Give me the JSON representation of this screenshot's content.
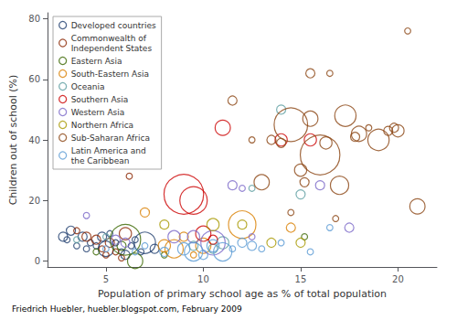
{
  "chart_data": {
    "type": "scatter",
    "xlabel": "Population of primary school age as % of total population",
    "ylabel": "Children out of school (%)",
    "footnote": "Friedrich Huebler, huebler.blogspot.com, February 2009",
    "xlim": [
      2,
      22
    ],
    "ylim": [
      -2,
      82
    ],
    "xticks": [
      5,
      10,
      15,
      20
    ],
    "yticks": [
      0,
      20,
      40,
      60,
      80
    ],
    "grid": false,
    "legend": "upper left",
    "marker": "open_circle",
    "series": [
      {
        "name": "Developed countries",
        "color": "#1f3d6e",
        "x": [
          2.8,
          3.0,
          3.2,
          3.5,
          3.8,
          4.0,
          4.2,
          4.5,
          4.8,
          5.0,
          5.2,
          5.5,
          5.8,
          6.0,
          6.3,
          6.5,
          6.8,
          7.0,
          7.5
        ],
        "values": [
          8,
          7,
          10,
          5,
          8,
          4,
          6,
          5,
          8,
          4,
          9,
          6,
          3,
          2,
          5,
          7,
          3,
          6,
          4
        ],
        "sizes": [
          3,
          2,
          3,
          2,
          3,
          2,
          2,
          2,
          3,
          5,
          2,
          2,
          2,
          3,
          2,
          2,
          2,
          7,
          3
        ]
      },
      {
        "name": "Commonwealth of\nIndependent States",
        "color": "#8b2500",
        "x": [
          3.5,
          4.0,
          4.5,
          4.8,
          5.0,
          5.2,
          5.5,
          5.8,
          6.0,
          6.2
        ],
        "values": [
          10,
          8,
          7,
          4,
          2,
          6,
          3,
          1,
          9,
          28
        ],
        "sizes": [
          2,
          3,
          3,
          2,
          2,
          3,
          2,
          2,
          4,
          2
        ]
      },
      {
        "name": "Eastern Asia",
        "color": "#3a6600",
        "x": [
          4.5,
          5.8,
          6.0,
          6.5,
          8.0,
          15.2
        ],
        "values": [
          3,
          5,
          7,
          0,
          2,
          8
        ],
        "sizes": [
          2,
          3,
          10,
          5,
          2,
          2
        ]
      },
      {
        "name": "South-Eastern Asia",
        "color": "#d97f00",
        "x": [
          7.0,
          8.0,
          8.5,
          9.0,
          9.5,
          10.0,
          12.0,
          14.5
        ],
        "values": [
          16,
          5,
          4,
          8,
          2,
          5,
          12,
          11
        ],
        "sizes": [
          3,
          4,
          6,
          3,
          2,
          5,
          9,
          3
        ]
      },
      {
        "name": "Oceania",
        "color": "#5c9da0",
        "x": [
          3.5,
          5.0,
          9.5,
          10.5,
          11.0,
          12.5,
          14.0,
          15.0
        ],
        "values": [
          7,
          8,
          5,
          4,
          6,
          24,
          50,
          22
        ],
        "sizes": [
          2,
          2,
          3,
          3,
          4,
          2,
          3,
          3
        ]
      },
      {
        "name": "Southern Asia",
        "color": "#cc0000",
        "x": [
          9.0,
          9.5,
          10.0,
          10.5,
          11.0,
          14.0,
          15.5
        ],
        "values": [
          22,
          20,
          9,
          7,
          44,
          40,
          40
        ],
        "sizes": [
          13,
          9,
          5,
          3,
          5,
          4,
          4
        ]
      },
      {
        "name": "Western Asia",
        "color": "#7b68c8",
        "x": [
          4.0,
          5.5,
          6.0,
          8.5,
          9.5,
          10.5,
          11.5,
          12.0,
          12.5,
          16.0,
          17.5
        ],
        "values": [
          15,
          7,
          6,
          8,
          8,
          6,
          25,
          24,
          8,
          25,
          11
        ],
        "sizes": [
          2,
          3,
          3,
          4,
          4,
          8,
          3,
          2,
          2,
          3,
          3
        ]
      },
      {
        "name": "Northern Africa",
        "color": "#a89800",
        "x": [
          8.0,
          10.5,
          12.0,
          13.5,
          15.0
        ],
        "values": [
          12,
          12,
          12,
          6,
          6
        ],
        "sizes": [
          3,
          4,
          3,
          3,
          3
        ]
      },
      {
        "name": "Sub-Saharan Africa",
        "color": "#8b4513",
        "x": [
          11.5,
          12.5,
          13.0,
          13.5,
          14.0,
          14.5,
          14.5,
          15.0,
          15.2,
          15.5,
          15.5,
          16.0,
          16.3,
          16.5,
          16.8,
          17.0,
          17.3,
          17.8,
          18.0,
          18.5,
          19.0,
          19.5,
          19.8,
          20.0,
          20.5,
          21.0
        ],
        "values": [
          53,
          40,
          26,
          40,
          39,
          45,
          16,
          30,
          26,
          62,
          47,
          35,
          39,
          62,
          14,
          25,
          48,
          41,
          42,
          44,
          40,
          43,
          44,
          43,
          76,
          18
        ],
        "sizes": [
          3,
          2,
          5,
          3,
          3,
          11,
          2,
          4,
          3,
          3,
          5,
          13,
          4,
          2,
          2,
          6,
          7,
          3,
          5,
          2,
          7,
          3,
          3,
          4,
          2,
          5
        ]
      },
      {
        "name": "Latin America and\nthe Caribbean",
        "color": "#5b9bd5",
        "x": [
          5.0,
          6.5,
          7.0,
          8.0,
          9.0,
          9.5,
          10.0,
          10.5,
          11.0,
          11.5,
          12.0,
          12.5,
          13.0,
          14.0,
          15.5,
          16.5
        ],
        "values": [
          4,
          3,
          5,
          3,
          4,
          3,
          2,
          5,
          3,
          4,
          6,
          5,
          4,
          6,
          3,
          11
        ],
        "sizes": [
          2,
          2,
          2,
          3,
          4,
          6,
          3,
          4,
          6,
          2,
          3,
          3,
          2,
          2,
          2,
          2
        ]
      }
    ]
  }
}
